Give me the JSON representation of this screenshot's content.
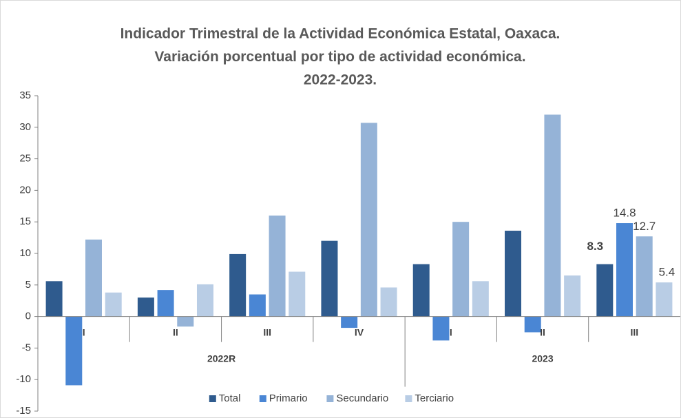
{
  "chart_data": {
    "type": "bar",
    "title": [
      "Indicador Trimestral de la Actividad Económica Estatal, Oaxaca.",
      "Variación porcentual por tipo de actividad económica.",
      "2022-2023."
    ],
    "categories": [
      "I",
      "II",
      "III",
      "IV",
      "I",
      "II",
      "III"
    ],
    "groups": [
      {
        "label": "2022R",
        "span": 4
      },
      {
        "label": "2023",
        "span": 3
      }
    ],
    "series": [
      {
        "name": "Total",
        "color": "#2f5b8e",
        "values": [
          5.6,
          3.0,
          9.9,
          12.0,
          8.3,
          13.6,
          8.3
        ]
      },
      {
        "name": "Primario",
        "color": "#4a86d4",
        "values": [
          -10.9,
          4.2,
          3.5,
          -1.8,
          -3.8,
          -2.5,
          14.8
        ]
      },
      {
        "name": "Secundario",
        "color": "#95b3d7",
        "values": [
          12.2,
          -1.6,
          16.0,
          30.7,
          15.0,
          32.0,
          12.7
        ]
      },
      {
        "name": "Terciario",
        "color": "#b9cde5",
        "values": [
          3.8,
          5.1,
          7.1,
          4.6,
          5.6,
          6.5,
          5.4
        ]
      }
    ],
    "data_labels_category": 6,
    "ylim": [
      -15,
      35
    ],
    "yticks": [
      -15,
      -10,
      -5,
      0,
      5,
      10,
      15,
      20,
      25,
      30,
      35
    ],
    "legend": "bottom"
  }
}
